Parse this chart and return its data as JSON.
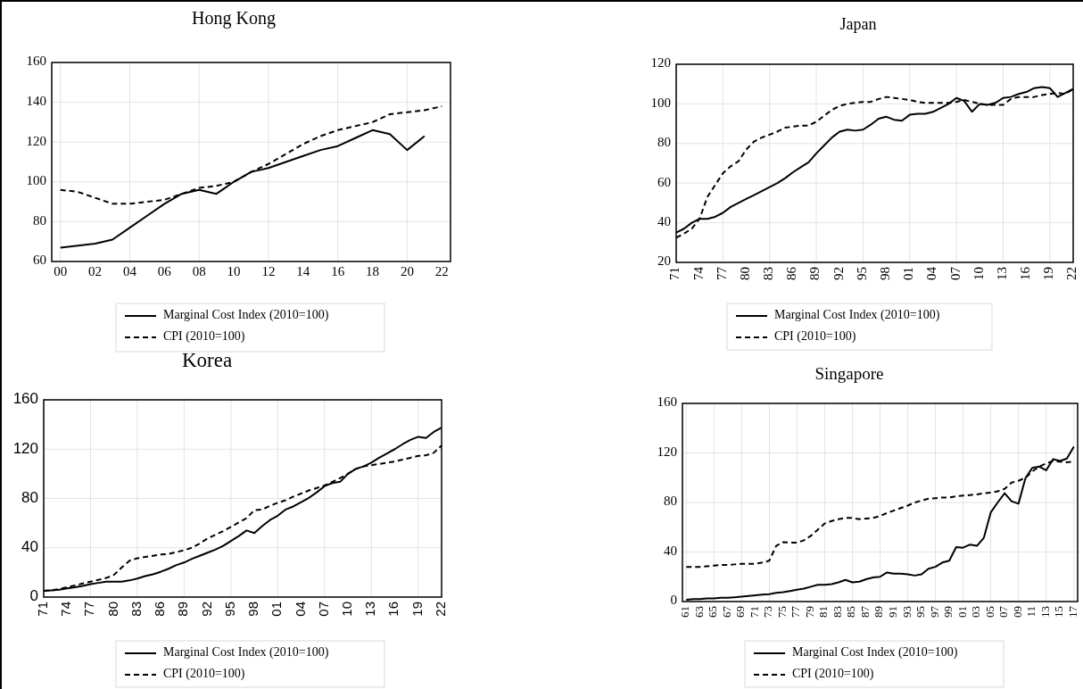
{
  "chart_data": [
    {
      "type": "line",
      "title": "Hong Kong",
      "categories": [
        "00",
        null,
        "02",
        null,
        "04",
        null,
        "06",
        null,
        "08",
        null,
        "10",
        null,
        "12",
        null,
        "14",
        null,
        "16",
        null,
        "18",
        null,
        "20",
        null,
        "22"
      ],
      "series": [
        {
          "name": "Marginal Cost Index (2010=100)",
          "color": "#000000",
          "line_style": "solid",
          "values": [
            67,
            68,
            69,
            71,
            77,
            83,
            89,
            94,
            96,
            94,
            100,
            105,
            107,
            110,
            113,
            116,
            118,
            122,
            126,
            124,
            116,
            123,
            null
          ]
        },
        {
          "name": "CPI (2010=100)",
          "color": "#000000",
          "line_style": "dashed",
          "values": [
            96,
            95,
            92,
            89,
            89,
            90,
            91,
            94,
            97,
            98,
            100,
            105,
            109,
            114,
            119,
            123,
            126,
            128,
            130,
            134,
            135,
            136,
            138
          ]
        }
      ],
      "ylim": [
        60,
        160
      ],
      "yticks": [
        60,
        80,
        100,
        120,
        140,
        160
      ],
      "grid": true,
      "legend": "bottom"
    },
    {
      "type": "line",
      "title": "Japan",
      "categories": [
        "71",
        null,
        null,
        "74",
        null,
        null,
        "77",
        null,
        null,
        "80",
        null,
        null,
        "83",
        null,
        null,
        "86",
        null,
        null,
        "89",
        null,
        null,
        "92",
        null,
        null,
        "95",
        null,
        null,
        "98",
        null,
        null,
        "01",
        null,
        null,
        "04",
        null,
        null,
        "07",
        null,
        null,
        "10",
        null,
        null,
        "13",
        null,
        null,
        "16",
        null,
        null,
        "19",
        null,
        null,
        "22"
      ],
      "series": [
        {
          "name": "Marginal Cost Index (2010=100)",
          "color": "#000000",
          "line_style": "solid",
          "values": [
            35,
            37,
            40,
            42,
            42,
            43,
            45,
            48,
            50,
            52,
            54,
            56,
            58,
            60,
            62.5,
            65.5,
            68,
            70.5,
            75,
            79,
            83,
            86,
            87,
            86.5,
            87,
            89.5,
            92.5,
            93.5,
            92,
            91.5,
            94.5,
            95,
            95,
            96,
            98,
            100,
            103,
            101.5,
            96,
            100,
            99.5,
            100.5,
            103,
            103.5,
            105,
            106,
            108,
            108.5,
            108,
            103.5,
            105.5,
            107.5
          ]
        },
        {
          "name": "CPI (2010=100)",
          "color": "#000000",
          "line_style": "dashed",
          "values": [
            32.5,
            34.5,
            37,
            42,
            53,
            59,
            65,
            68.5,
            71,
            77,
            81,
            83,
            84.5,
            86,
            88,
            88.5,
            89,
            89,
            91,
            94,
            97,
            99,
            100,
            100.5,
            101,
            101,
            102.5,
            103.5,
            103,
            102.5,
            102,
            101,
            100.5,
            100.5,
            100.5,
            100.5,
            101,
            102,
            101,
            100,
            99.5,
            99.5,
            99.5,
            102.5,
            103.5,
            103.5,
            103.5,
            104.5,
            105,
            105.5,
            105,
            107.5
          ]
        }
      ],
      "ylim": [
        20,
        120
      ],
      "yticks": [
        20,
        40,
        60,
        80,
        100,
        120
      ],
      "grid": true,
      "legend": "bottom"
    },
    {
      "type": "line",
      "title": "Korea",
      "categories": [
        "71",
        null,
        null,
        "74",
        null,
        null,
        "77",
        null,
        null,
        "80",
        null,
        null,
        "83",
        null,
        null,
        "86",
        null,
        null,
        "89",
        null,
        null,
        "92",
        null,
        null,
        "95",
        null,
        null,
        "98",
        null,
        null,
        "01",
        null,
        null,
        "04",
        null,
        null,
        "07",
        null,
        null,
        "10",
        null,
        null,
        "13",
        null,
        null,
        "16",
        null,
        null,
        "19",
        null,
        null,
        "22"
      ],
      "series": [
        {
          "name": "Marginal Cost Index (2010=100)",
          "color": "#000000",
          "line_style": "solid",
          "values": [
            5,
            5.5,
            6,
            7,
            8,
            9,
            10.5,
            11.5,
            12.5,
            12.5,
            12.5,
            13.5,
            15,
            17,
            18.5,
            20.5,
            23,
            26,
            28,
            31,
            33.5,
            36,
            38.5,
            41.5,
            45.5,
            49.5,
            54,
            52,
            57.5,
            62.5,
            66,
            71,
            73.5,
            77,
            80.5,
            85,
            90,
            92.5,
            93.5,
            100,
            104,
            106,
            109,
            113,
            116.5,
            120,
            124,
            127.5,
            130,
            129,
            134,
            137.5
          ]
        },
        {
          "name": "CPI (2010=100)",
          "color": "#000000",
          "line_style": "dashed",
          "values": [
            5,
            5.5,
            6.5,
            8,
            9.5,
            11,
            12.5,
            14,
            15.5,
            18,
            24,
            29.5,
            31.5,
            32.5,
            33.5,
            34.5,
            35,
            36.5,
            38,
            40,
            43.5,
            47.5,
            50.5,
            53.5,
            57,
            60.5,
            64,
            70.5,
            71,
            74,
            76.5,
            78.5,
            81.5,
            84,
            86.5,
            88.5,
            90.5,
            93.5,
            96.5,
            100,
            104,
            106,
            107,
            108,
            109,
            110,
            111.5,
            113,
            114.5,
            115,
            117,
            123
          ]
        }
      ],
      "ylim": [
        0,
        160
      ],
      "yticks": [
        0,
        40,
        80,
        120,
        160
      ],
      "grid": true,
      "legend": "bottom"
    },
    {
      "type": "line",
      "title": "Singapore",
      "categories": [
        "61",
        null,
        "63",
        null,
        "65",
        null,
        "67",
        null,
        "69",
        null,
        "71",
        null,
        "73",
        null,
        "75",
        null,
        "77",
        null,
        "79",
        null,
        "81",
        null,
        "83",
        null,
        "85",
        null,
        "87",
        null,
        "89",
        null,
        "91",
        null,
        "93",
        null,
        "95",
        null,
        "97",
        null,
        "99",
        null,
        "01",
        null,
        "03",
        null,
        "05",
        null,
        "07",
        null,
        "09",
        null,
        "11",
        null,
        "13",
        null,
        "15",
        null,
        "17"
      ],
      "series": [
        {
          "name": "Marginal Cost Index (2010=100)",
          "color": "#000000",
          "line_style": "solid",
          "values": [
            1.5,
            2,
            2,
            2.5,
            2.5,
            3,
            3,
            3.5,
            4,
            4.5,
            5,
            5.5,
            6,
            7,
            7.5,
            8.5,
            9.5,
            10.5,
            12,
            13.5,
            13.5,
            14,
            15.5,
            17.5,
            15.5,
            16,
            18,
            19.5,
            20,
            23.5,
            22.5,
            22.5,
            22,
            21,
            22,
            26.5,
            28,
            31.5,
            33,
            44,
            43.5,
            46,
            45,
            51.5,
            72,
            80,
            87.5,
            81,
            79,
            99.5,
            108,
            109,
            106,
            115,
            113.5,
            115.5,
            125
          ]
        },
        {
          "name": "CPI (2010=100)",
          "color": "#000000",
          "line_style": "dashed",
          "values": [
            28,
            28,
            28,
            28.5,
            29,
            29.5,
            29.5,
            30,
            30.5,
            30.5,
            30.5,
            31.5,
            33,
            45,
            48,
            47.5,
            47.5,
            49.5,
            53,
            58,
            63,
            65,
            66.5,
            67.5,
            67.5,
            66.5,
            67,
            67.5,
            69,
            71.5,
            73.5,
            75.5,
            77.5,
            80,
            81.5,
            83,
            83.5,
            84,
            84,
            85,
            85.5,
            86,
            86.5,
            87.5,
            88,
            89,
            91,
            96,
            97.5,
            100,
            105,
            109,
            111.5,
            113.5,
            113,
            112.5,
            113
          ]
        }
      ],
      "ylim": [
        0,
        160
      ],
      "yticks": [
        0,
        40,
        80,
        120,
        160
      ],
      "grid": true,
      "legend": "bottom"
    }
  ]
}
